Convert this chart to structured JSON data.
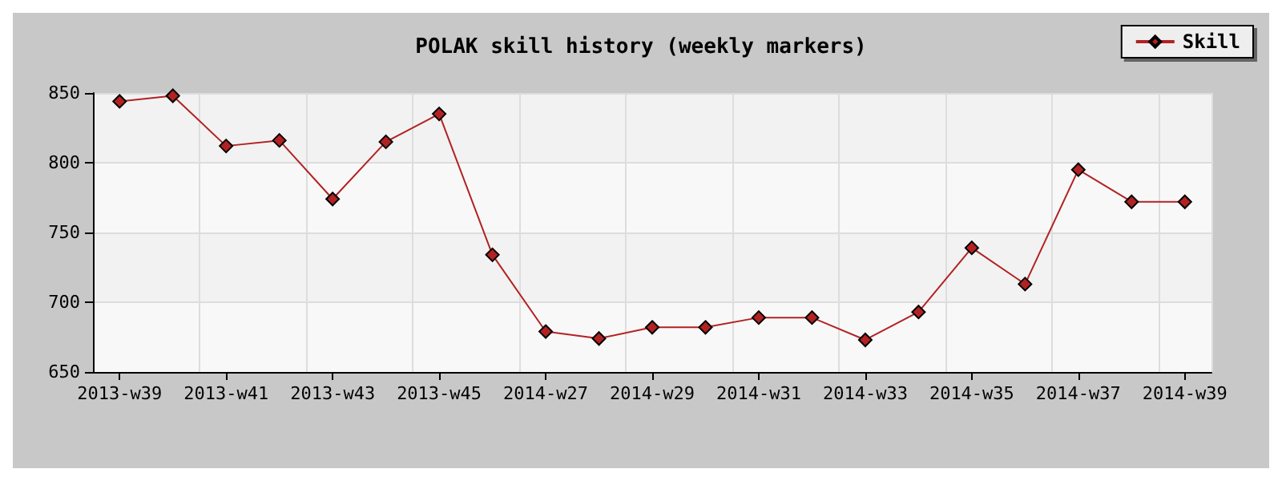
{
  "chart_data": {
    "type": "line",
    "title": "POLAK skill history (weekly markers)",
    "categories": [
      "2013-w39",
      null,
      "2013-w41",
      null,
      "2013-w43",
      null,
      "2013-w45",
      null,
      "2014-w27",
      null,
      "2014-w29",
      null,
      "2014-w31",
      null,
      "2014-w33",
      null,
      "2014-w35",
      null,
      "2014-w37",
      null,
      "2014-w39"
    ],
    "series": [
      {
        "name": "Skill",
        "color": "#b22222",
        "values": [
          844,
          848,
          812,
          816,
          774,
          815,
          835,
          734,
          679,
          674,
          682,
          682,
          689,
          689,
          673,
          693,
          739,
          713,
          795,
          772,
          772
        ]
      }
    ],
    "ylim": [
      650,
      850
    ],
    "yticks": [
      650,
      700,
      750,
      800,
      850
    ],
    "grid": true,
    "legend": "top right",
    "marker": "diamond",
    "line_style": "solid"
  }
}
